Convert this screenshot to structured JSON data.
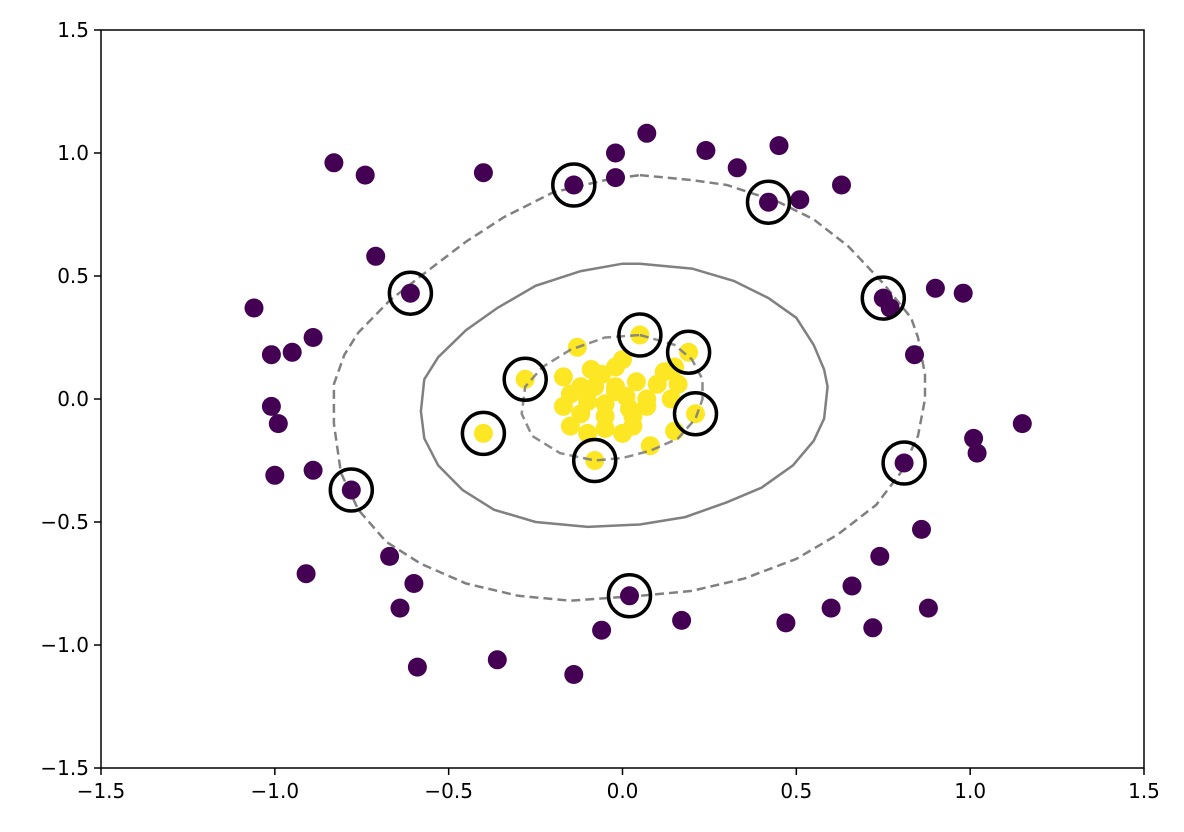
{
  "chart_data": {
    "type": "scatter",
    "title": "",
    "xlabel": "",
    "ylabel": "",
    "xlim": [
      -1.5,
      1.5
    ],
    "ylim": [
      -1.5,
      1.5
    ],
    "grid": false,
    "xticks": [
      -1.5,
      -1.0,
      -0.5,
      0.0,
      0.5,
      1.0,
      1.5
    ],
    "yticks": [
      -1.5,
      -1.0,
      -0.5,
      0.0,
      0.5,
      1.0,
      1.5
    ],
    "xtick_labels": [
      "−1.5",
      "−1.0",
      "−0.5",
      "0.0",
      "0.5",
      "1.0",
      "1.5"
    ],
    "ytick_labels": [
      "−1.5",
      "−1.0",
      "−0.5",
      "0.0",
      "0.5",
      "1.0",
      "1.5"
    ],
    "colors": {
      "class_0": "#440154",
      "class_1": "#fde725",
      "contour": "#808080",
      "support_vector_ring": "#000000"
    },
    "series": [
      {
        "class": 0,
        "points": [
          [
            -1.06,
            0.37
          ],
          [
            -1.01,
            0.18
          ],
          [
            -0.95,
            0.19
          ],
          [
            -0.89,
            0.25
          ],
          [
            -1.01,
            -0.03
          ],
          [
            -0.99,
            -0.1
          ],
          [
            -1.0,
            -0.31
          ],
          [
            -0.89,
            -0.29
          ],
          [
            -0.78,
            -0.37
          ],
          [
            -0.91,
            -0.71
          ],
          [
            -0.67,
            -0.64
          ],
          [
            -0.64,
            -0.85
          ],
          [
            -0.6,
            -0.75
          ],
          [
            -0.59,
            -1.09
          ],
          [
            -0.36,
            -1.06
          ],
          [
            -0.14,
            -1.12
          ],
          [
            -0.06,
            -0.94
          ],
          [
            0.02,
            -0.8
          ],
          [
            0.17,
            -0.9
          ],
          [
            0.47,
            -0.91
          ],
          [
            0.6,
            -0.85
          ],
          [
            0.66,
            -0.76
          ],
          [
            0.72,
            -0.93
          ],
          [
            0.74,
            -0.64
          ],
          [
            0.86,
            -0.53
          ],
          [
            0.88,
            -0.85
          ],
          [
            0.81,
            -0.26
          ],
          [
            1.01,
            -0.16
          ],
          [
            1.02,
            -0.22
          ],
          [
            1.15,
            -0.1
          ],
          [
            0.84,
            0.18
          ],
          [
            0.77,
            0.37
          ],
          [
            0.75,
            0.41
          ],
          [
            0.9,
            0.45
          ],
          [
            0.98,
            0.43
          ],
          [
            0.63,
            0.87
          ],
          [
            0.51,
            0.81
          ],
          [
            0.42,
            0.8
          ],
          [
            0.45,
            1.03
          ],
          [
            0.33,
            0.94
          ],
          [
            0.24,
            1.01
          ],
          [
            0.07,
            1.08
          ],
          [
            -0.02,
            1.0
          ],
          [
            -0.02,
            0.9
          ],
          [
            -0.14,
            0.87
          ],
          [
            -0.4,
            0.92
          ],
          [
            -0.74,
            0.91
          ],
          [
            -0.83,
            0.96
          ],
          [
            -0.71,
            0.58
          ],
          [
            -0.61,
            0.43
          ]
        ]
      },
      {
        "class": 1,
        "points": [
          [
            -0.13,
            0.21
          ],
          [
            -0.17,
            0.09
          ],
          [
            -0.09,
            0.12
          ],
          [
            -0.06,
            0.1
          ],
          [
            -0.12,
            0.05
          ],
          [
            -0.02,
            0.13
          ],
          [
            0.0,
            0.16
          ],
          [
            0.05,
            0.26
          ],
          [
            0.12,
            0.11
          ],
          [
            0.15,
            0.13
          ],
          [
            0.19,
            0.19
          ],
          [
            0.16,
            0.06
          ],
          [
            0.1,
            0.06
          ],
          [
            0.04,
            0.07
          ],
          [
            -0.02,
            0.05
          ],
          [
            -0.08,
            0.05
          ],
          [
            -0.15,
            0.02
          ],
          [
            -0.1,
            -0.01
          ],
          [
            -0.05,
            -0.02
          ],
          [
            0.01,
            0.01
          ],
          [
            0.07,
            0.0
          ],
          [
            0.14,
            0.0
          ],
          [
            -0.17,
            -0.03
          ],
          [
            -0.12,
            -0.06
          ],
          [
            -0.05,
            -0.07
          ],
          [
            0.02,
            -0.04
          ],
          [
            0.07,
            -0.03
          ],
          [
            0.21,
            -0.06
          ],
          [
            -0.15,
            -0.11
          ],
          [
            -0.1,
            -0.14
          ],
          [
            -0.05,
            -0.12
          ],
          [
            0.0,
            -0.14
          ],
          [
            0.03,
            -0.11
          ],
          [
            0.15,
            -0.13
          ],
          [
            0.08,
            -0.19
          ],
          [
            -0.08,
            -0.25
          ],
          [
            -0.28,
            0.08
          ],
          [
            -0.4,
            -0.14
          ],
          [
            -0.02,
            0.03
          ],
          [
            0.03,
            -0.07
          ]
        ]
      }
    ],
    "support_vectors": [
      [
        -0.14,
        0.87
      ],
      [
        0.42,
        0.8
      ],
      [
        -0.61,
        0.43
      ],
      [
        0.75,
        0.41
      ],
      [
        0.05,
        0.26
      ],
      [
        0.19,
        0.19
      ],
      [
        -0.28,
        0.08
      ],
      [
        0.21,
        -0.06
      ],
      [
        -0.4,
        -0.14
      ],
      [
        -0.08,
        -0.25
      ],
      [
        0.81,
        -0.26
      ],
      [
        -0.78,
        -0.37
      ],
      [
        0.02,
        -0.8
      ]
    ],
    "decision_boundary": [
      [
        0.05,
        0.55
      ],
      [
        0.2,
        0.53
      ],
      [
        0.32,
        0.48
      ],
      [
        0.42,
        0.41
      ],
      [
        0.5,
        0.33
      ],
      [
        0.55,
        0.22
      ],
      [
        0.58,
        0.12
      ],
      [
        0.59,
        0.05
      ],
      [
        0.58,
        -0.08
      ],
      [
        0.55,
        -0.17
      ],
      [
        0.49,
        -0.27
      ],
      [
        0.4,
        -0.36
      ],
      [
        0.3,
        -0.42
      ],
      [
        0.18,
        -0.48
      ],
      [
        0.05,
        -0.51
      ],
      [
        -0.1,
        -0.52
      ],
      [
        -0.25,
        -0.5
      ],
      [
        -0.37,
        -0.45
      ],
      [
        -0.46,
        -0.37
      ],
      [
        -0.53,
        -0.27
      ],
      [
        -0.57,
        -0.16
      ],
      [
        -0.58,
        -0.05
      ],
      [
        -0.57,
        0.08
      ],
      [
        -0.53,
        0.17
      ],
      [
        -0.45,
        0.28
      ],
      [
        -0.36,
        0.37
      ],
      [
        -0.25,
        0.46
      ],
      [
        -0.12,
        0.52
      ],
      [
        0.0,
        0.55
      ],
      [
        0.05,
        0.55
      ]
    ],
    "outer_margin": [
      [
        0.05,
        0.91
      ],
      [
        0.2,
        0.89
      ],
      [
        0.3,
        0.87
      ],
      [
        0.45,
        0.8
      ],
      [
        0.55,
        0.73
      ],
      [
        0.65,
        0.62
      ],
      [
        0.75,
        0.47
      ],
      [
        0.83,
        0.33
      ],
      [
        0.85,
        0.25
      ],
      [
        0.87,
        0.1
      ],
      [
        0.87,
        0.0
      ],
      [
        0.85,
        -0.15
      ],
      [
        0.8,
        -0.3
      ],
      [
        0.73,
        -0.43
      ],
      [
        0.62,
        -0.55
      ],
      [
        0.5,
        -0.65
      ],
      [
        0.35,
        -0.73
      ],
      [
        0.2,
        -0.78
      ],
      [
        0.05,
        -0.8
      ],
      [
        -0.15,
        -0.82
      ],
      [
        -0.3,
        -0.8
      ],
      [
        -0.45,
        -0.75
      ],
      [
        -0.58,
        -0.67
      ],
      [
        -0.68,
        -0.58
      ],
      [
        -0.76,
        -0.45
      ],
      [
        -0.81,
        -0.3
      ],
      [
        -0.83,
        -0.1
      ],
      [
        -0.83,
        0.06
      ],
      [
        -0.8,
        0.18
      ],
      [
        -0.76,
        0.27
      ],
      [
        -0.67,
        0.4
      ],
      [
        -0.58,
        0.5
      ],
      [
        -0.45,
        0.64
      ],
      [
        -0.34,
        0.74
      ],
      [
        -0.2,
        0.84
      ],
      [
        -0.05,
        0.89
      ],
      [
        0.05,
        0.91
      ]
    ],
    "inner_margin": [
      [
        0.05,
        0.26
      ],
      [
        0.15,
        0.22
      ],
      [
        0.2,
        0.16
      ],
      [
        0.23,
        0.08
      ],
      [
        0.23,
        0.0
      ],
      [
        0.21,
        -0.08
      ],
      [
        0.16,
        -0.16
      ],
      [
        0.08,
        -0.21
      ],
      [
        0.0,
        -0.24
      ],
      [
        -0.08,
        -0.25
      ],
      [
        -0.18,
        -0.22
      ],
      [
        -0.26,
        -0.15
      ],
      [
        -0.29,
        -0.06
      ],
      [
        -0.28,
        0.05
      ],
      [
        -0.23,
        0.13
      ],
      [
        -0.15,
        0.2
      ],
      [
        -0.05,
        0.25
      ],
      [
        0.05,
        0.26
      ]
    ]
  }
}
